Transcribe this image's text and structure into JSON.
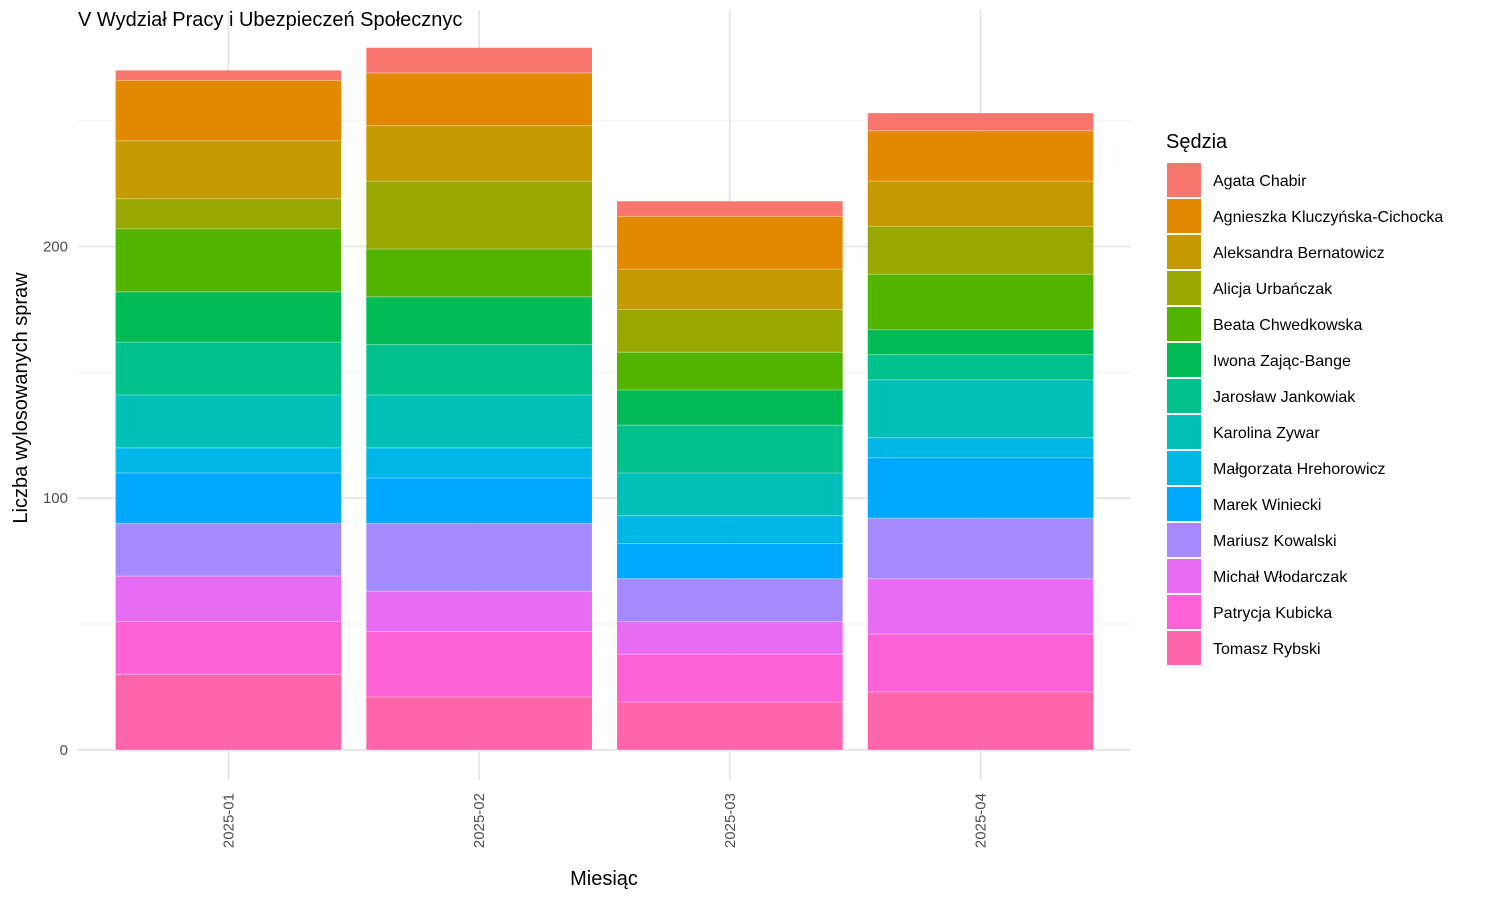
{
  "chart_data": {
    "type": "bar",
    "stacked": true,
    "title": "V Wydział Pracy i Ubezpieczeń Społecznyc",
    "xlabel": "Miesiąc",
    "ylabel": "Liczba wylosowanych spraw",
    "ylim": [
      -12,
      294
    ],
    "yticks": [
      0,
      100,
      200
    ],
    "grid": true,
    "legend_title": "Sędzia",
    "legend_position": "right",
    "categories": [
      "2025-01",
      "2025-02",
      "2025-03",
      "2025-04"
    ],
    "series": [
      {
        "name": "Tomasz Rybski",
        "color": "#FF65AC",
        "values": [
          30,
          21,
          19,
          23
        ]
      },
      {
        "name": "Patrycja Kubicka",
        "color": "#FC61D5",
        "values": [
          21,
          26,
          19,
          23
        ]
      },
      {
        "name": "Michał Włodarczak",
        "color": "#E76BF3",
        "values": [
          18,
          16,
          13,
          22
        ]
      },
      {
        "name": "Mariusz Kowalski",
        "color": "#A58AFF",
        "values": [
          21,
          27,
          17,
          24
        ]
      },
      {
        "name": "Marek Winiecki",
        "color": "#00A9FF",
        "values": [
          20,
          18,
          14,
          24
        ]
      },
      {
        "name": "Małgorzata Hrehorowicz",
        "color": "#00B8E7",
        "values": [
          10,
          12,
          11,
          8
        ]
      },
      {
        "name": "Karolina Zywar",
        "color": "#00C0B8",
        "values": [
          21,
          21,
          17,
          23
        ]
      },
      {
        "name": "Jarosław Jankowiak",
        "color": "#00C08B",
        "values": [
          21,
          20,
          19,
          10
        ]
      },
      {
        "name": "Iwona Zając-Bange",
        "color": "#00BC56",
        "values": [
          20,
          19,
          14,
          10
        ]
      },
      {
        "name": "Beata Chwedkowska",
        "color": "#53B400",
        "values": [
          25,
          19,
          15,
          22
        ]
      },
      {
        "name": "Alicja Urbańczak",
        "color": "#99A800",
        "values": [
          12,
          27,
          17,
          19
        ]
      },
      {
        "name": "Aleksandra Bernatowicz",
        "color": "#C49A00",
        "values": [
          23,
          22,
          16,
          18
        ]
      },
      {
        "name": "Agnieszka Kluczyńska-Cichocka",
        "color": "#E38900",
        "values": [
          24,
          21,
          21,
          20
        ]
      },
      {
        "name": "Agata Chabir",
        "color": "#F8766D",
        "values": [
          4,
          10,
          6,
          7
        ]
      }
    ]
  }
}
